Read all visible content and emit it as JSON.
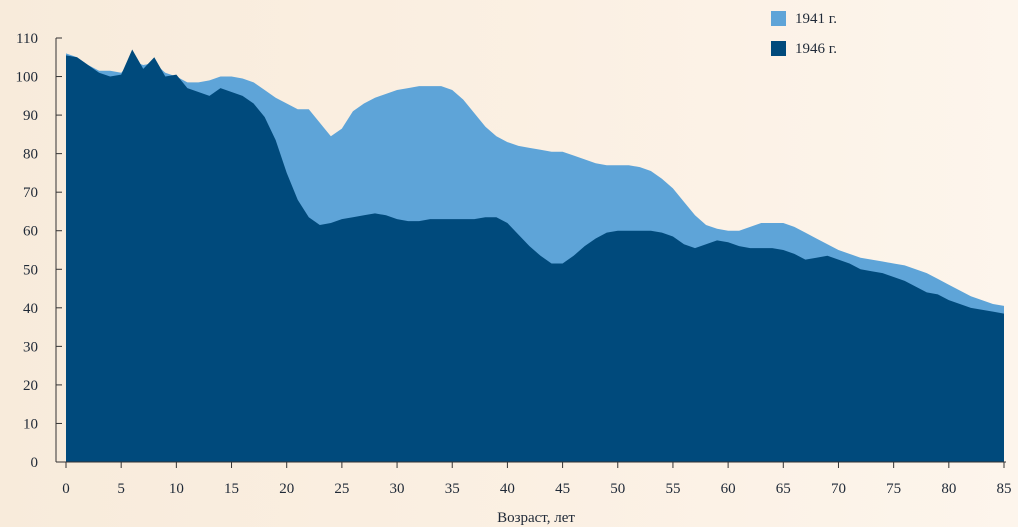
{
  "chart_data": {
    "type": "area",
    "title": "",
    "xlabel": "Возраст, лет",
    "ylabel": "",
    "xlim": [
      0,
      85
    ],
    "ylim": [
      0,
      110
    ],
    "xticks": [
      0,
      5,
      10,
      15,
      20,
      25,
      30,
      35,
      40,
      45,
      50,
      55,
      60,
      65,
      70,
      75,
      80,
      85
    ],
    "yticks": [
      0,
      10,
      20,
      30,
      40,
      50,
      60,
      70,
      80,
      90,
      100,
      110
    ],
    "grid": false,
    "legend_position": "top-right",
    "series": [
      {
        "name": "1941 г.",
        "color": "#5ea4d8",
        "points": [
          [
            0,
            106
          ],
          [
            1,
            105
          ],
          [
            2,
            103
          ],
          [
            3,
            101.5
          ],
          [
            4,
            101.5
          ],
          [
            5,
            101
          ],
          [
            6,
            104
          ],
          [
            7,
            103
          ],
          [
            8,
            103.5
          ],
          [
            9,
            101
          ],
          [
            10,
            100
          ],
          [
            11,
            98.5
          ],
          [
            12,
            98.5
          ],
          [
            13,
            99
          ],
          [
            14,
            100
          ],
          [
            15,
            100
          ],
          [
            16,
            99.5
          ],
          [
            17,
            98.5
          ],
          [
            18,
            96.5
          ],
          [
            19,
            94.5
          ],
          [
            20,
            93
          ],
          [
            21,
            91.5
          ],
          [
            22,
            91.5
          ],
          [
            23,
            88
          ],
          [
            24,
            84.5
          ],
          [
            25,
            86.5
          ],
          [
            26,
            91
          ],
          [
            27,
            93
          ],
          [
            28,
            94.5
          ],
          [
            29,
            95.5
          ],
          [
            30,
            96.5
          ],
          [
            31,
            97
          ],
          [
            32,
            97.5
          ],
          [
            33,
            97.5
          ],
          [
            34,
            97.5
          ],
          [
            35,
            96.5
          ],
          [
            36,
            94
          ],
          [
            37,
            90.5
          ],
          [
            38,
            87
          ],
          [
            39,
            84.5
          ],
          [
            40,
            83
          ],
          [
            41,
            82
          ],
          [
            42,
            81.5
          ],
          [
            43,
            81
          ],
          [
            44,
            80.5
          ],
          [
            45,
            80.5
          ],
          [
            46,
            79.5
          ],
          [
            47,
            78.5
          ],
          [
            48,
            77.5
          ],
          [
            49,
            77
          ],
          [
            50,
            77
          ],
          [
            51,
            77
          ],
          [
            52,
            76.5
          ],
          [
            53,
            75.5
          ],
          [
            54,
            73.5
          ],
          [
            55,
            71
          ],
          [
            56,
            67.5
          ],
          [
            57,
            64
          ],
          [
            58,
            61.5
          ],
          [
            59,
            60.5
          ],
          [
            60,
            60
          ],
          [
            61,
            60
          ],
          [
            62,
            61
          ],
          [
            63,
            62
          ],
          [
            64,
            62
          ],
          [
            65,
            62
          ],
          [
            66,
            61
          ],
          [
            67,
            59.5
          ],
          [
            68,
            58
          ],
          [
            69,
            56.5
          ],
          [
            70,
            55
          ],
          [
            71,
            54
          ],
          [
            72,
            53
          ],
          [
            73,
            52.5
          ],
          [
            74,
            52
          ],
          [
            75,
            51.5
          ],
          [
            76,
            51
          ],
          [
            77,
            50
          ],
          [
            78,
            49
          ],
          [
            79,
            47.5
          ],
          [
            80,
            46
          ],
          [
            81,
            44.5
          ],
          [
            82,
            43
          ],
          [
            83,
            42
          ],
          [
            84,
            41
          ],
          [
            85,
            40.5
          ]
        ]
      },
      {
        "name": "1946 г.",
        "color": "#004a7c",
        "points": [
          [
            0,
            105.5
          ],
          [
            1,
            105
          ],
          [
            2,
            103
          ],
          [
            3,
            101
          ],
          [
            4,
            100
          ],
          [
            5,
            100.5
          ],
          [
            6,
            107
          ],
          [
            7,
            102
          ],
          [
            8,
            105
          ],
          [
            9,
            100
          ],
          [
            10,
            100.5
          ],
          [
            11,
            97
          ],
          [
            12,
            96
          ],
          [
            13,
            95
          ],
          [
            14,
            97
          ],
          [
            15,
            96
          ],
          [
            16,
            95
          ],
          [
            17,
            93
          ],
          [
            18,
            89.5
          ],
          [
            19,
            83.5
          ],
          [
            20,
            75
          ],
          [
            21,
            68
          ],
          [
            22,
            63.5
          ],
          [
            23,
            61.5
          ],
          [
            24,
            62
          ],
          [
            25,
            63
          ],
          [
            26,
            63.5
          ],
          [
            27,
            64
          ],
          [
            28,
            64.5
          ],
          [
            29,
            64
          ],
          [
            30,
            63
          ],
          [
            31,
            62.5
          ],
          [
            32,
            62.5
          ],
          [
            33,
            63
          ],
          [
            34,
            63
          ],
          [
            35,
            63
          ],
          [
            36,
            63
          ],
          [
            37,
            63
          ],
          [
            38,
            63.5
          ],
          [
            39,
            63.5
          ],
          [
            40,
            62
          ],
          [
            41,
            59
          ],
          [
            42,
            56
          ],
          [
            43,
            53.5
          ],
          [
            44,
            51.5
          ],
          [
            45,
            51.5
          ],
          [
            46,
            53.5
          ],
          [
            47,
            56
          ],
          [
            48,
            58
          ],
          [
            49,
            59.5
          ],
          [
            50,
            60
          ],
          [
            51,
            60
          ],
          [
            52,
            60
          ],
          [
            53,
            60
          ],
          [
            54,
            59.5
          ],
          [
            55,
            58.5
          ],
          [
            56,
            56.5
          ],
          [
            57,
            55.5
          ],
          [
            58,
            56.5
          ],
          [
            59,
            57.5
          ],
          [
            60,
            57
          ],
          [
            61,
            56
          ],
          [
            62,
            55.5
          ],
          [
            63,
            55.5
          ],
          [
            64,
            55.5
          ],
          [
            65,
            55
          ],
          [
            66,
            54
          ],
          [
            67,
            52.5
          ],
          [
            68,
            53
          ],
          [
            69,
            53.5
          ],
          [
            70,
            52.5
          ],
          [
            71,
            51.5
          ],
          [
            72,
            50
          ],
          [
            73,
            49.5
          ],
          [
            74,
            49
          ],
          [
            75,
            48
          ],
          [
            76,
            47
          ],
          [
            77,
            45.5
          ],
          [
            78,
            44
          ],
          [
            79,
            43.5
          ],
          [
            80,
            42
          ],
          [
            81,
            41
          ],
          [
            82,
            40
          ],
          [
            83,
            39.5
          ],
          [
            84,
            39
          ],
          [
            85,
            38.5
          ]
        ]
      }
    ]
  }
}
